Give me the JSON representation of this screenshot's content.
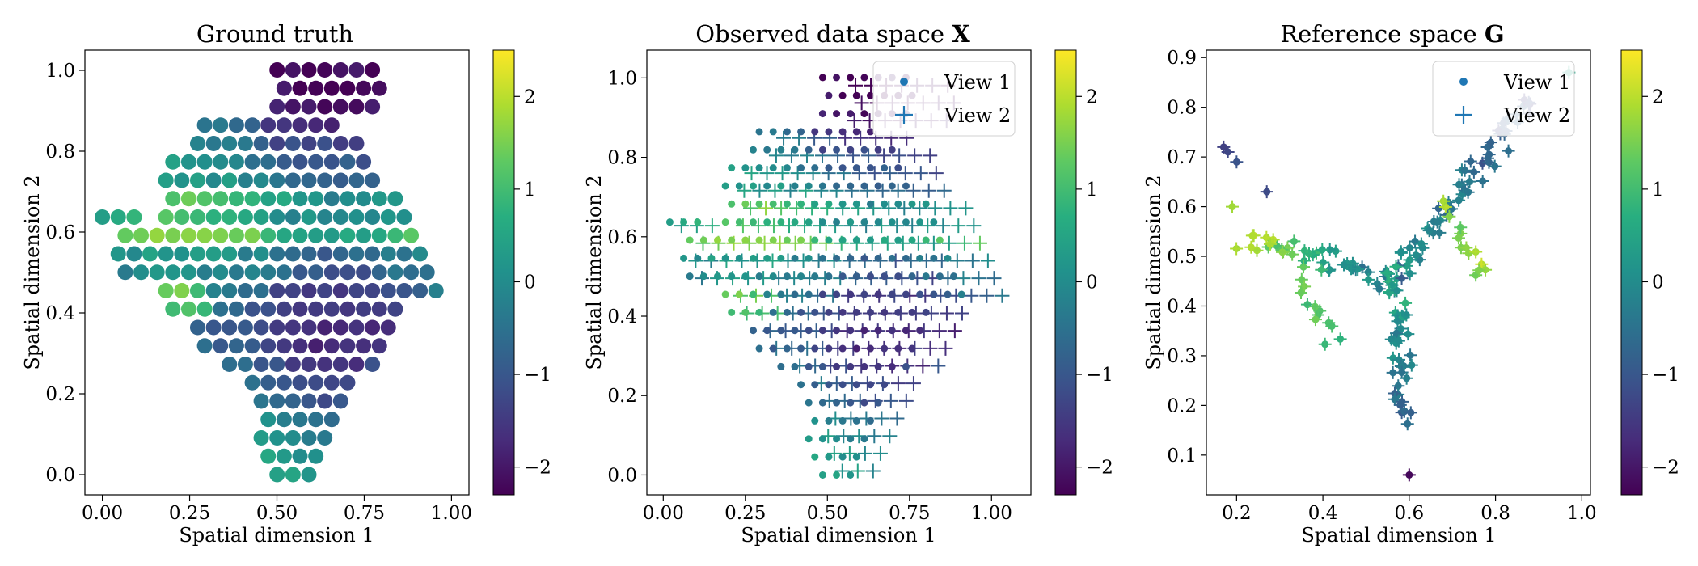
{
  "colors": {
    "view1": "#1f77b4",
    "view2": "#1f77b4",
    "viridis_low": "#440154",
    "viridis_high": "#fde725"
  },
  "colorbar": {
    "min": -2.3,
    "max": 2.5,
    "ticks": [
      -2,
      -1,
      0,
      1,
      2
    ],
    "tick_labels": [
      "−2",
      "−1",
      "0",
      "1",
      "2"
    ]
  },
  "chart_data": [
    {
      "type": "scatter",
      "title": "Ground truth",
      "title_symbol": "",
      "xlabel": "Spatial dimension 1",
      "ylabel": "Spatial dimension 2",
      "xlim": [
        -0.05,
        1.05
      ],
      "ylim": [
        -0.05,
        1.05
      ],
      "xticks": [
        0.0,
        0.25,
        0.5,
        0.75,
        1.0
      ],
      "xtick_labels": [
        "0.00",
        "0.25",
        "0.50",
        "0.75",
        "1.00"
      ],
      "yticks": [
        0.0,
        0.2,
        0.4,
        0.6,
        0.8,
        1.0
      ],
      "ytick_labels": [
        "0.0",
        "0.2",
        "0.4",
        "0.6",
        "0.8",
        "1.0"
      ],
      "legend": [],
      "note": "Points on a hexagonal-style grid colored by a latent value (viridis)"
    },
    {
      "type": "scatter",
      "title": "Observed data space ",
      "title_symbol": "X",
      "xlabel": "Spatial dimension 1",
      "ylabel": "Spatial dimension 2",
      "xlim": [
        -0.05,
        1.12
      ],
      "ylim": [
        -0.05,
        1.07
      ],
      "xticks": [
        0.0,
        0.25,
        0.5,
        0.75,
        1.0
      ],
      "xtick_labels": [
        "0.00",
        "0.25",
        "0.50",
        "0.75",
        "1.00"
      ],
      "yticks": [
        0.0,
        0.2,
        0.4,
        0.6,
        0.8,
        1.0
      ],
      "ytick_labels": [
        "0.0",
        "0.2",
        "0.4",
        "0.6",
        "0.8",
        "1.0"
      ],
      "legend": [
        "View 1",
        "View 2"
      ],
      "legend_position": "top-right",
      "note": "View 1 as dots, View 2 as crosses, distorted grid"
    },
    {
      "type": "scatter",
      "title": "Reference space ",
      "title_symbol": "G",
      "xlabel": "Spatial dimension 1",
      "ylabel": "Spatial dimension 2",
      "xlim": [
        0.13,
        1.02
      ],
      "ylim": [
        0.02,
        0.915
      ],
      "xticks": [
        0.2,
        0.4,
        0.6,
        0.8,
        1.0
      ],
      "xtick_labels": [
        "0.2",
        "0.4",
        "0.6",
        "0.8",
        "1.0"
      ],
      "yticks": [
        0.1,
        0.2,
        0.3,
        0.4,
        0.5,
        0.6,
        0.7,
        0.8,
        0.9
      ],
      "ytick_labels": [
        "0.1",
        "0.2",
        "0.3",
        "0.4",
        "0.5",
        "0.6",
        "0.7",
        "0.8",
        "0.9"
      ],
      "legend": [
        "View 1",
        "View 2"
      ],
      "legend_position": "top-right",
      "note": "Aligned points of both views forming a Y-shaped structure"
    }
  ]
}
